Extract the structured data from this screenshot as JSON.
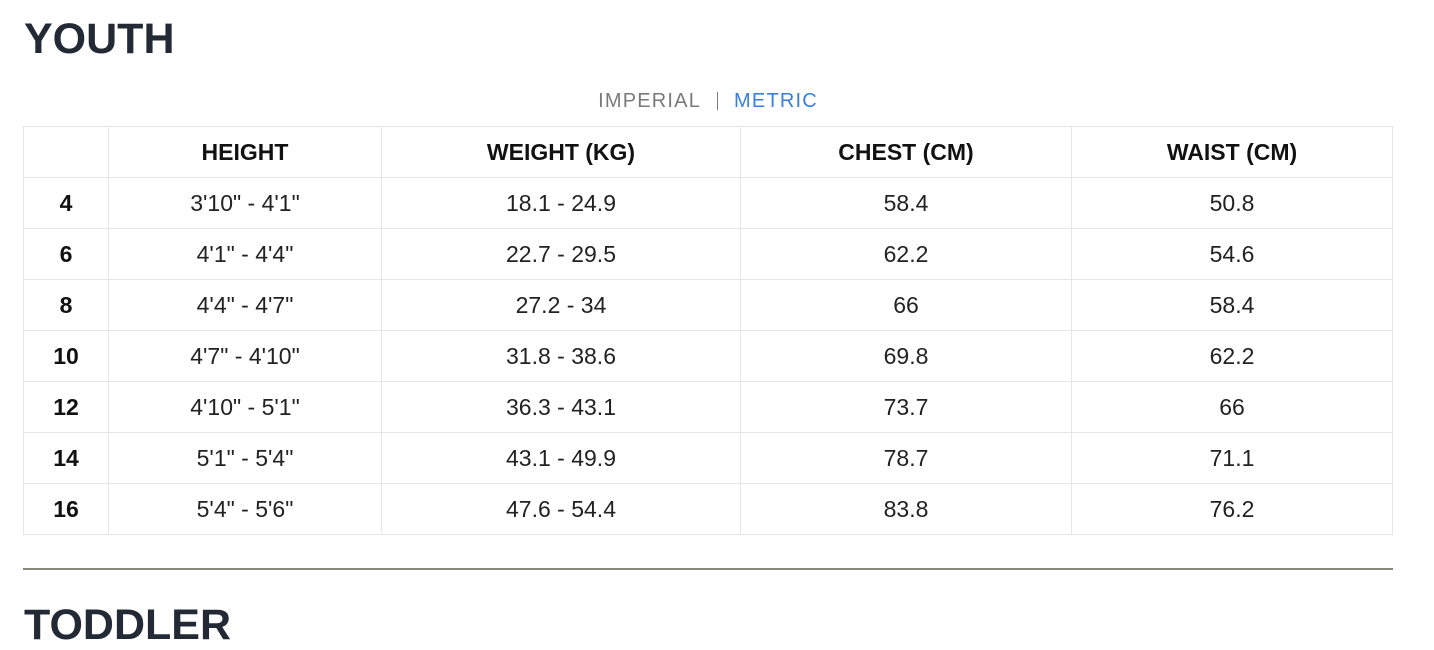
{
  "section": {
    "title": "YOUTH"
  },
  "units": {
    "imperial_label": "IMPERIAL",
    "metric_label": "METRIC",
    "selected": "METRIC",
    "active_color": "#3a7ee0",
    "inactive_color": "#7a7a7a"
  },
  "table": {
    "headers": [
      "",
      "HEIGHT",
      "WEIGHT (KG)",
      "CHEST (CM)",
      "WAIST (CM)"
    ],
    "rows": [
      [
        "4",
        "3'10\" - 4'1\"",
        "18.1 - 24.9",
        "58.4",
        "50.8"
      ],
      [
        "6",
        "4'1\" - 4'4\"",
        "22.7 - 29.5",
        "62.2",
        "54.6"
      ],
      [
        "8",
        "4'4\" - 4'7\"",
        "27.2 - 34",
        "66",
        "58.4"
      ],
      [
        "10",
        "4'7\" - 4'10\"",
        "31.8 - 38.6",
        "69.8",
        "62.2"
      ],
      [
        "12",
        "4'10\" - 5'1\"",
        "36.3 - 43.1",
        "73.7",
        "66"
      ],
      [
        "14",
        "5'1\" - 5'4\"",
        "43.1 - 49.9",
        "78.7",
        "71.1"
      ],
      [
        "16",
        "5'4\" - 5'6\"",
        "47.6 - 54.4",
        "83.8",
        "76.2"
      ]
    ]
  },
  "next_section": {
    "title": "TODDLER"
  }
}
